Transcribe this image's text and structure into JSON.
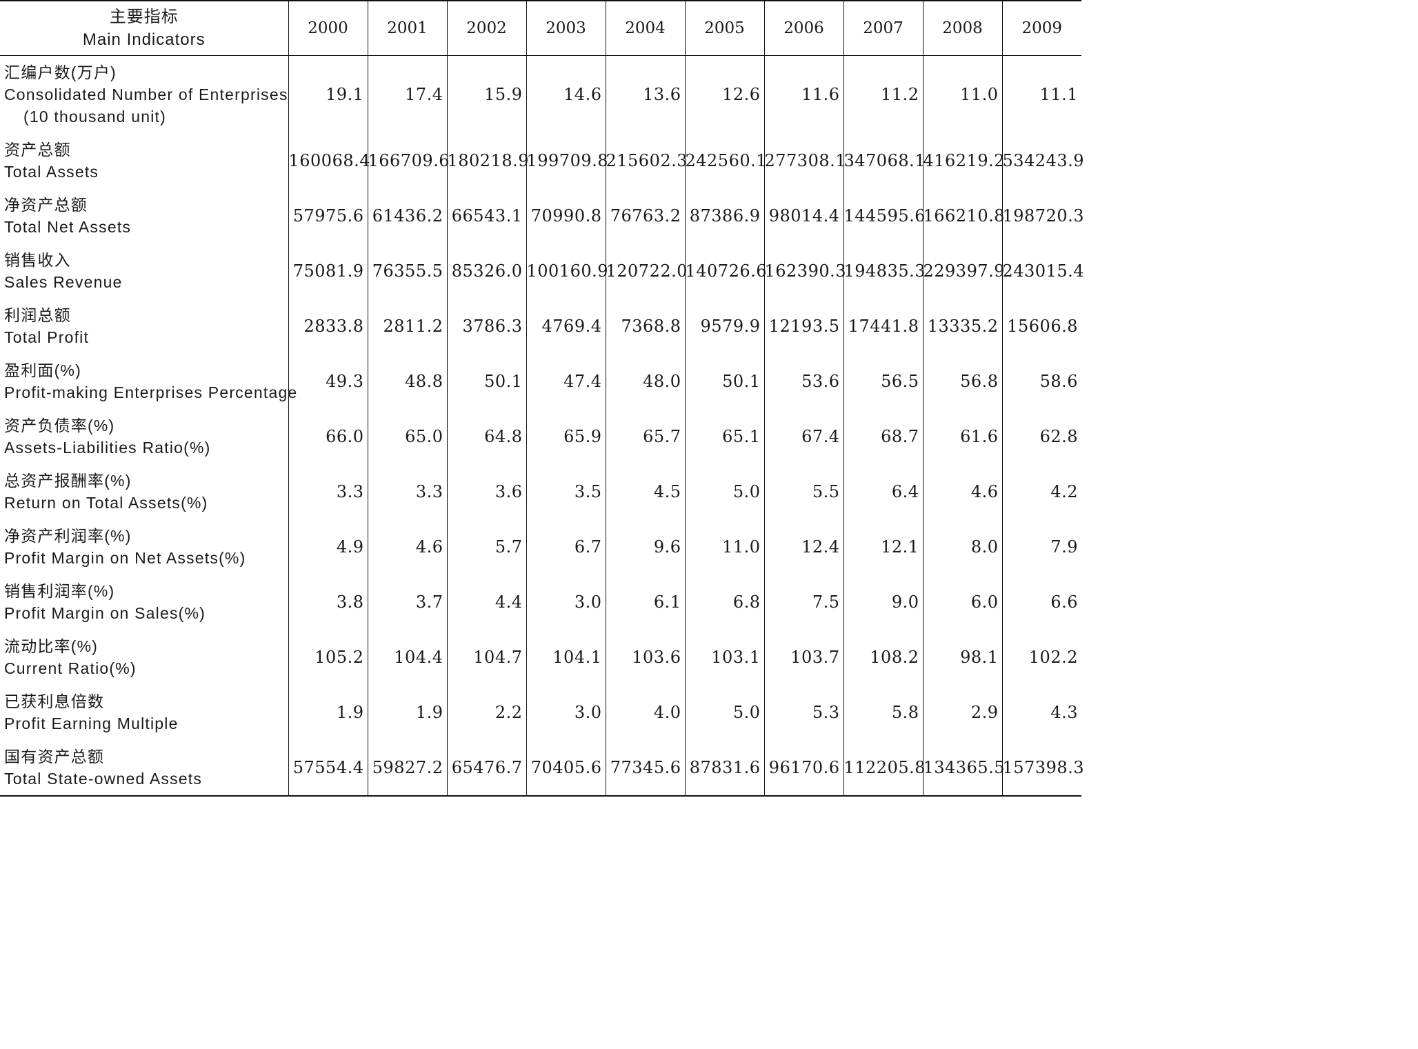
{
  "table": {
    "header": {
      "indicator_zh": "主要指标",
      "indicator_en": "Main Indicators",
      "years": [
        "2000",
        "2001",
        "2002",
        "2003",
        "2004",
        "2005",
        "2006",
        "2007",
        "2008",
        "2009"
      ]
    },
    "rows": [
      {
        "zh": "汇编户数(万户)",
        "en": "Consolidated Number of Enterprises",
        "en2": "(10 thousand unit)",
        "values": [
          "19.1",
          "17.4",
          "15.9",
          "14.6",
          "13.6",
          "12.6",
          "11.6",
          "11.2",
          "11.0",
          "11.1"
        ]
      },
      {
        "zh": "资产总额",
        "en": "Total Assets",
        "values": [
          "160068.4",
          "166709.6",
          "180218.9",
          "199709.8",
          "215602.3",
          "242560.1",
          "277308.1",
          "347068.1",
          "416219.2",
          "534243.9"
        ]
      },
      {
        "zh": "净资产总额",
        "en": "Total Net Assets",
        "values": [
          "57975.6",
          "61436.2",
          "66543.1",
          "70990.8",
          "76763.2",
          "87386.9",
          "98014.4",
          "144595.6",
          "166210.8",
          "198720.3"
        ]
      },
      {
        "zh": "销售收入",
        "en": "Sales Revenue",
        "values": [
          "75081.9",
          "76355.5",
          "85326.0",
          "100160.9",
          "120722.0",
          "140726.6",
          "162390.3",
          "194835.3",
          "229397.9",
          "243015.4"
        ]
      },
      {
        "zh": "利润总额",
        "en": "Total Profit",
        "values": [
          "2833.8",
          "2811.2",
          "3786.3",
          "4769.4",
          "7368.8",
          "9579.9",
          "12193.5",
          "17441.8",
          "13335.2",
          "15606.8"
        ]
      },
      {
        "zh": "盈利面(%)",
        "en": "Profit-making Enterprises Percentage",
        "values": [
          "49.3",
          "48.8",
          "50.1",
          "47.4",
          "48.0",
          "50.1",
          "53.6",
          "56.5",
          "56.8",
          "58.6"
        ]
      },
      {
        "zh": "资产负债率(%)",
        "en": "Assets-Liabilities Ratio(%)",
        "values": [
          "66.0",
          "65.0",
          "64.8",
          "65.9",
          "65.7",
          "65.1",
          "67.4",
          "68.7",
          "61.6",
          "62.8"
        ]
      },
      {
        "zh": "总资产报酬率(%)",
        "en": "Return on Total Assets(%)",
        "values": [
          "3.3",
          "3.3",
          "3.6",
          "3.5",
          "4.5",
          "5.0",
          "5.5",
          "6.4",
          "4.6",
          "4.2"
        ]
      },
      {
        "zh": "净资产利润率(%)",
        "en": "Profit Margin on Net Assets(%)",
        "values": [
          "4.9",
          "4.6",
          "5.7",
          "6.7",
          "9.6",
          "11.0",
          "12.4",
          "12.1",
          "8.0",
          "7.9"
        ]
      },
      {
        "zh": "销售利润率(%)",
        "en": "Profit Margin on Sales(%)",
        "values": [
          "3.8",
          "3.7",
          "4.4",
          "3.0",
          "6.1",
          "6.8",
          "7.5",
          "9.0",
          "6.0",
          "6.6"
        ]
      },
      {
        "zh": "流动比率(%)",
        "en": "Current Ratio(%)",
        "values": [
          "105.2",
          "104.4",
          "104.7",
          "104.1",
          "103.6",
          "103.1",
          "103.7",
          "108.2",
          "98.1",
          "102.2"
        ]
      },
      {
        "zh": "已获利息倍数",
        "en": "Profit Earning Multiple",
        "values": [
          "1.9",
          "1.9",
          "2.2",
          "3.0",
          "4.0",
          "5.0",
          "5.3",
          "5.8",
          "2.9",
          "4.3"
        ]
      },
      {
        "zh": "国有资产总额",
        "en": "Total State-owned Assets",
        "values": [
          "57554.4",
          "59827.2",
          "65476.7",
          "70405.6",
          "77345.6",
          "87831.6",
          "96170.6",
          "112205.8",
          "134365.5",
          "157398.3"
        ]
      }
    ]
  }
}
